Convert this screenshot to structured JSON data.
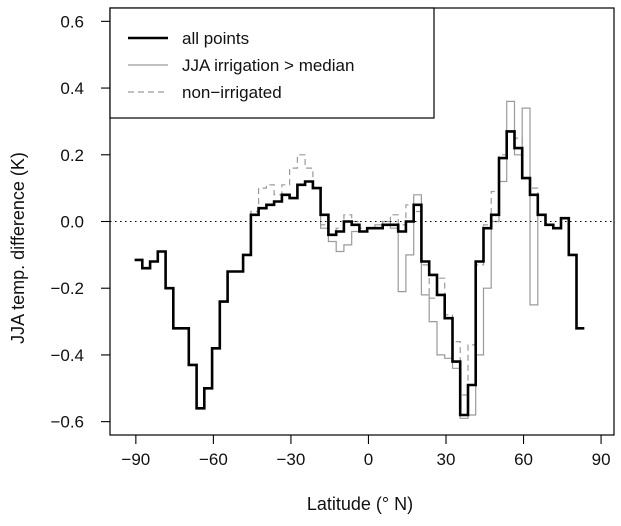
{
  "chart_data": {
    "type": "line",
    "title": "",
    "xlabel": "Latitude (° N)",
    "ylabel": "JJA temp. difference (K)",
    "xlim": [
      -100,
      95
    ],
    "ylim": [
      -0.64,
      0.64
    ],
    "xticks": [
      -90,
      -60,
      -30,
      0,
      30,
      60,
      90
    ],
    "yticks": [
      -0.6,
      -0.4,
      -0.2,
      0.0,
      0.2,
      0.4,
      0.6
    ],
    "xtick_labels": [
      "−90",
      "−60",
      "−30",
      "0",
      "30",
      "60",
      "90"
    ],
    "ytick_labels": [
      "−0.6",
      "−0.4",
      "−0.2",
      "0.0",
      "0.2",
      "0.4",
      "0.6"
    ],
    "reference_line": {
      "y": 0,
      "style": "dotted"
    },
    "legend": {
      "position": "top-left",
      "boxed": true
    },
    "step_width": 3,
    "series": [
      {
        "name": "all points",
        "style": "solid",
        "color": "#000000",
        "width": 2.6,
        "x": [
          -89,
          -86,
          -83,
          -80,
          -77,
          -74,
          -71,
          -68,
          -65,
          -62,
          -59,
          -56,
          -53,
          -50,
          -47,
          -44,
          -41,
          -38,
          -35,
          -32,
          -29,
          -26,
          -23,
          -20,
          -17,
          -14,
          -11,
          -8,
          -5,
          -2,
          1,
          4,
          7,
          10,
          13,
          16,
          19,
          22,
          25,
          28,
          31,
          34,
          37,
          40,
          43,
          46,
          49,
          52,
          55,
          58,
          61,
          64,
          67,
          70,
          73,
          76,
          79,
          82
        ],
        "y": [
          -0.115,
          -0.14,
          -0.12,
          -0.09,
          -0.2,
          -0.32,
          -0.32,
          -0.43,
          -0.56,
          -0.5,
          -0.38,
          -0.24,
          -0.15,
          -0.15,
          -0.1,
          0.02,
          0.04,
          0.05,
          0.06,
          0.08,
          0.07,
          0.11,
          0.12,
          0.1,
          0.02,
          -0.04,
          -0.03,
          0.0,
          -0.01,
          -0.03,
          -0.02,
          -0.02,
          -0.01,
          -0.01,
          -0.03,
          0.0,
          0.05,
          -0.12,
          -0.16,
          -0.22,
          -0.29,
          -0.42,
          -0.58,
          -0.49,
          -0.12,
          -0.02,
          0.02,
          0.19,
          0.27,
          0.22,
          0.13,
          0.08,
          0.02,
          -0.01,
          -0.02,
          0.01,
          -0.1,
          -0.32
        ]
      },
      {
        "name": "JJA irrigation > median",
        "style": "solid",
        "color": "#9a9a9a",
        "width": 1.2,
        "x": [
          -89,
          -86,
          -83,
          -80,
          -77,
          -74,
          -71,
          -68,
          -65,
          -62,
          -59,
          -56,
          -53,
          -50,
          -47,
          -44,
          -41,
          -38,
          -35,
          -32,
          -29,
          -26,
          -23,
          -20,
          -17,
          -14,
          -11,
          -8,
          -5,
          -2,
          1,
          4,
          7,
          10,
          13,
          16,
          19,
          22,
          25,
          28,
          31,
          34,
          37,
          40,
          43,
          46,
          49,
          52,
          55,
          58,
          61,
          64,
          67,
          70,
          73,
          76,
          79,
          82
        ],
        "y": [
          -0.115,
          -0.14,
          -0.12,
          -0.09,
          -0.2,
          -0.32,
          -0.32,
          -0.43,
          -0.56,
          -0.5,
          -0.38,
          -0.24,
          -0.15,
          -0.15,
          -0.1,
          0.02,
          0.04,
          0.05,
          0.06,
          0.08,
          0.07,
          0.11,
          0.12,
          0.1,
          -0.02,
          -0.06,
          -0.09,
          -0.07,
          -0.03,
          -0.03,
          -0.02,
          -0.01,
          0.0,
          -0.02,
          -0.21,
          -0.1,
          0.08,
          -0.22,
          -0.3,
          -0.4,
          -0.41,
          -0.44,
          -0.59,
          -0.58,
          -0.4,
          -0.2,
          0.0,
          0.12,
          0.36,
          0.2,
          0.34,
          -0.25,
          0.02,
          -0.01,
          -0.02,
          0.01,
          -0.1,
          -0.32
        ]
      },
      {
        "name": "non−irrigated",
        "style": "dashed",
        "color": "#9a9a9a",
        "width": 1.2,
        "x": [
          -89,
          -86,
          -83,
          -80,
          -77,
          -74,
          -71,
          -68,
          -65,
          -62,
          -59,
          -56,
          -53,
          -50,
          -47,
          -44,
          -41,
          -38,
          -35,
          -32,
          -29,
          -26,
          -23,
          -20,
          -17,
          -14,
          -11,
          -8,
          -5,
          -2,
          1,
          4,
          7,
          10,
          13,
          16,
          19,
          22,
          25,
          28,
          31,
          34,
          37,
          40,
          43,
          46,
          49,
          52,
          55,
          58,
          61,
          64,
          67,
          70,
          73,
          76,
          79,
          82
        ],
        "y": [
          -0.115,
          -0.14,
          -0.12,
          -0.09,
          -0.2,
          -0.32,
          -0.32,
          -0.43,
          -0.56,
          -0.5,
          -0.38,
          -0.24,
          -0.15,
          -0.15,
          -0.1,
          0.03,
          0.1,
          0.11,
          0.08,
          0.11,
          0.16,
          0.2,
          0.16,
          0.1,
          -0.01,
          -0.04,
          -0.02,
          0.02,
          0.0,
          -0.02,
          -0.02,
          -0.02,
          -0.01,
          0.02,
          -0.01,
          0.05,
          0.03,
          -0.13,
          -0.23,
          -0.17,
          -0.28,
          -0.36,
          -0.52,
          -0.37,
          -0.13,
          -0.01,
          0.09,
          0.2,
          0.27,
          0.25,
          0.13,
          0.1,
          0.02,
          -0.01,
          -0.02,
          0.01,
          -0.1,
          -0.32
        ]
      }
    ]
  }
}
